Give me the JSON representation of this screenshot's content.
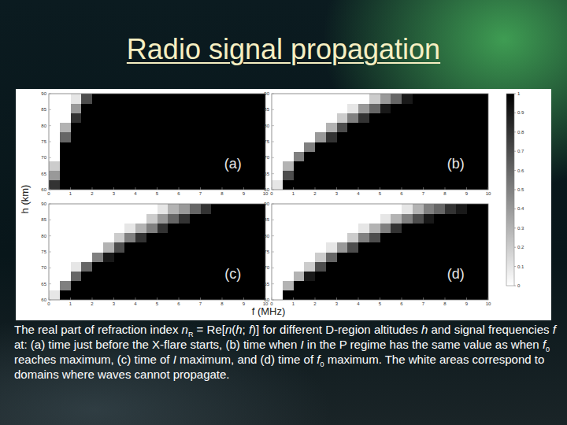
{
  "title": "Radio signal propagation",
  "chart_data": {
    "type": "heatmap",
    "xlabel": "f (MHz)",
    "ylabel": "h (km)",
    "x_edges": [
      0,
      0.5,
      1,
      1.5,
      2,
      2.5,
      3,
      3.5,
      4,
      4.5,
      5,
      5.5,
      6,
      6.5,
      7,
      7.5,
      8,
      8.5,
      9,
      9.5,
      10
    ],
    "y_edges": [
      60,
      63,
      66,
      69,
      72,
      75,
      78,
      81,
      84,
      87,
      90
    ],
    "xlim": [
      0,
      10
    ],
    "ylim": [
      60,
      90
    ],
    "xticks": [
      0,
      1,
      2,
      3,
      4,
      5,
      6,
      7,
      8,
      9,
      10
    ],
    "yticks": [
      60,
      65,
      70,
      75,
      80,
      85,
      90
    ],
    "colorbar": {
      "range": [
        0,
        1
      ],
      "ticks": [
        0,
        0.1,
        0.2,
        0.3,
        0.4,
        0.5,
        0.6,
        0.7,
        0.8,
        0.9,
        1
      ]
    },
    "panels": [
      {
        "label": "(a)",
        "cells": [
          [
            0.8,
            1,
            1,
            1,
            1,
            1,
            1,
            1,
            1,
            1,
            1,
            1,
            1,
            1,
            1,
            1,
            1,
            1,
            1,
            1
          ],
          [
            0.4,
            1,
            1,
            1,
            1,
            1,
            1,
            1,
            1,
            1,
            1,
            1,
            1,
            1,
            1,
            1,
            1,
            1,
            1,
            1
          ],
          [
            0.2,
            1,
            1,
            1,
            1,
            1,
            1,
            1,
            1,
            1,
            1,
            1,
            1,
            1,
            1,
            1,
            1,
            1,
            1,
            1
          ],
          [
            0,
            1,
            1,
            1,
            1,
            1,
            1,
            1,
            1,
            1,
            1,
            1,
            1,
            1,
            1,
            1,
            1,
            1,
            1,
            1
          ],
          [
            0,
            1,
            1,
            1,
            1,
            1,
            1,
            1,
            1,
            1,
            1,
            1,
            1,
            1,
            1,
            1,
            1,
            1,
            1,
            1
          ],
          [
            0,
            0.6,
            1,
            1,
            1,
            1,
            1,
            1,
            1,
            1,
            1,
            1,
            1,
            1,
            1,
            1,
            1,
            1,
            1,
            1
          ],
          [
            0,
            0.3,
            1,
            1,
            1,
            1,
            1,
            1,
            1,
            1,
            1,
            1,
            1,
            1,
            1,
            1,
            1,
            1,
            1,
            1
          ],
          [
            0,
            0,
            0.8,
            1,
            1,
            1,
            1,
            1,
            1,
            1,
            1,
            1,
            1,
            1,
            1,
            1,
            1,
            1,
            1,
            1
          ],
          [
            0,
            0,
            0.4,
            1,
            1,
            1,
            1,
            1,
            1,
            1,
            1,
            1,
            1,
            1,
            1,
            1,
            1,
            1,
            1,
            1
          ],
          [
            0,
            0,
            0.1,
            0.7,
            1,
            1,
            1,
            1,
            1,
            1,
            1,
            1,
            1,
            1,
            1,
            1,
            1,
            1,
            1,
            1
          ]
        ]
      },
      {
        "label": "(b)",
        "cells": [
          [
            0.1,
            1,
            1,
            1,
            1,
            1,
            1,
            1,
            1,
            1,
            1,
            1,
            1,
            1,
            1,
            1,
            1,
            1,
            1,
            1
          ],
          [
            0,
            0.7,
            1,
            1,
            1,
            1,
            1,
            1,
            1,
            1,
            1,
            1,
            1,
            1,
            1,
            1,
            1,
            1,
            1,
            1
          ],
          [
            0,
            0.3,
            1,
            1,
            1,
            1,
            1,
            1,
            1,
            1,
            1,
            1,
            1,
            1,
            1,
            1,
            1,
            1,
            1,
            1
          ],
          [
            0,
            0,
            0.5,
            1,
            1,
            1,
            1,
            1,
            1,
            1,
            1,
            1,
            1,
            1,
            1,
            1,
            1,
            1,
            1,
            1
          ],
          [
            0,
            0,
            0,
            0.5,
            1,
            1,
            1,
            1,
            1,
            1,
            1,
            1,
            1,
            1,
            1,
            1,
            1,
            1,
            1,
            1
          ],
          [
            0,
            0,
            0,
            0,
            0.4,
            0.8,
            1,
            1,
            1,
            1,
            1,
            1,
            1,
            1,
            1,
            1,
            1,
            1,
            1,
            1
          ],
          [
            0,
            0,
            0,
            0,
            0,
            0.3,
            0.7,
            1,
            1,
            1,
            1,
            1,
            1,
            1,
            1,
            1,
            1,
            1,
            1,
            1
          ],
          [
            0,
            0,
            0,
            0,
            0,
            0,
            0.2,
            0.5,
            0.8,
            1,
            1,
            1,
            1,
            1,
            1,
            1,
            1,
            1,
            1,
            1
          ],
          [
            0,
            0,
            0,
            0,
            0,
            0,
            0,
            0.1,
            0.4,
            0.6,
            0.9,
            1,
            1,
            1,
            1,
            1,
            1,
            1,
            1,
            1
          ],
          [
            0,
            0,
            0,
            0,
            0,
            0,
            0,
            0,
            0,
            0.2,
            0.4,
            0.6,
            0.9,
            1,
            1,
            1,
            1,
            1,
            1,
            1
          ]
        ]
      },
      {
        "label": "(c)",
        "cells": [
          [
            0.1,
            1,
            1,
            1,
            1,
            1,
            1,
            1,
            1,
            1,
            1,
            1,
            1,
            1,
            1,
            1,
            1,
            1,
            1,
            1
          ],
          [
            0,
            0.5,
            1,
            1,
            1,
            1,
            1,
            1,
            1,
            1,
            1,
            1,
            1,
            1,
            1,
            1,
            1,
            1,
            1,
            1
          ],
          [
            0,
            0,
            0.6,
            1,
            1,
            1,
            1,
            1,
            1,
            1,
            1,
            1,
            1,
            1,
            1,
            1,
            1,
            1,
            1,
            1
          ],
          [
            0,
            0,
            0.1,
            0.6,
            1,
            1,
            1,
            1,
            1,
            1,
            1,
            1,
            1,
            1,
            1,
            1,
            1,
            1,
            1,
            1
          ],
          [
            0,
            0,
            0,
            0,
            0.5,
            0.9,
            1,
            1,
            1,
            1,
            1,
            1,
            1,
            1,
            1,
            1,
            1,
            1,
            1,
            1
          ],
          [
            0,
            0,
            0,
            0,
            0,
            0.3,
            0.7,
            1,
            1,
            1,
            1,
            1,
            1,
            1,
            1,
            1,
            1,
            1,
            1,
            1
          ],
          [
            0,
            0,
            0,
            0,
            0,
            0,
            0.2,
            0.5,
            0.8,
            1,
            1,
            1,
            1,
            1,
            1,
            1,
            1,
            1,
            1,
            1
          ],
          [
            0,
            0,
            0,
            0,
            0,
            0,
            0,
            0.1,
            0.3,
            0.5,
            0.8,
            1,
            1,
            1,
            1,
            1,
            1,
            1,
            1,
            1
          ],
          [
            0,
            0,
            0,
            0,
            0,
            0,
            0,
            0,
            0,
            0.2,
            0.4,
            0.6,
            0.8,
            1,
            1,
            1,
            1,
            1,
            1,
            1
          ],
          [
            0,
            0,
            0,
            0,
            0,
            0,
            0,
            0,
            0,
            0,
            0.1,
            0.3,
            0.4,
            0.6,
            0.8,
            1,
            1,
            1,
            1,
            1
          ]
        ]
      },
      {
        "label": "(d)",
        "cells": [
          [
            0,
            1,
            1,
            1,
            1,
            1,
            1,
            1,
            1,
            1,
            1,
            1,
            1,
            1,
            1,
            1,
            1,
            1,
            1,
            1
          ],
          [
            0,
            0.3,
            1,
            1,
            1,
            1,
            1,
            1,
            1,
            1,
            1,
            1,
            1,
            1,
            1,
            1,
            1,
            1,
            1,
            1
          ],
          [
            0,
            0,
            0.3,
            0.9,
            1,
            1,
            1,
            1,
            1,
            1,
            1,
            1,
            1,
            1,
            1,
            1,
            1,
            1,
            1,
            1
          ],
          [
            0,
            0,
            0,
            0.2,
            0.7,
            1,
            1,
            1,
            1,
            1,
            1,
            1,
            1,
            1,
            1,
            1,
            1,
            1,
            1,
            1
          ],
          [
            0,
            0,
            0,
            0,
            0.2,
            0.6,
            1,
            1,
            1,
            1,
            1,
            1,
            1,
            1,
            1,
            1,
            1,
            1,
            1,
            1
          ],
          [
            0,
            0,
            0,
            0,
            0,
            0.1,
            0.4,
            0.7,
            1,
            1,
            1,
            1,
            1,
            1,
            1,
            1,
            1,
            1,
            1,
            1
          ],
          [
            0,
            0,
            0,
            0,
            0,
            0,
            0,
            0.2,
            0.5,
            0.7,
            1,
            1,
            1,
            1,
            1,
            1,
            1,
            1,
            1,
            1
          ],
          [
            0,
            0,
            0,
            0,
            0,
            0,
            0,
            0,
            0.1,
            0.3,
            0.5,
            0.8,
            1,
            1,
            1,
            1,
            1,
            1,
            1,
            1
          ],
          [
            0,
            0,
            0,
            0,
            0,
            0,
            0,
            0,
            0,
            0,
            0.1,
            0.3,
            0.5,
            0.7,
            0.9,
            1,
            1,
            1,
            1,
            1
          ],
          [
            0,
            0,
            0,
            0,
            0,
            0,
            0,
            0,
            0,
            0,
            0,
            0,
            0.1,
            0.3,
            0.5,
            0.6,
            0.8,
            0.9,
            1,
            1
          ]
        ]
      }
    ]
  },
  "caption": [
    "The real part of refraction index ",
    {
      "i": "n"
    },
    {
      "sub": "R"
    },
    " = Re[",
    {
      "i": "n"
    },
    "(",
    {
      "i": "h"
    },
    "; ",
    {
      "i": "f"
    },
    ")] for different D-region altitudes ",
    {
      "i": "h"
    },
    " and signal frequencies ",
    {
      "i": "f"
    },
    " at: (a) time just before the X-flare starts, (b) time when ",
    {
      "i": "I"
    },
    " in the P regime has the same value as when ",
    {
      "i": "f"
    },
    {
      "sub": "0"
    },
    " reaches maximum, (c) time of ",
    {
      "i": "I"
    },
    " maximum, and (d) time of ",
    {
      "i": "f"
    },
    {
      "sub": "0"
    },
    " maximum. The white areas correspond to domains where waves cannot propagate."
  ]
}
